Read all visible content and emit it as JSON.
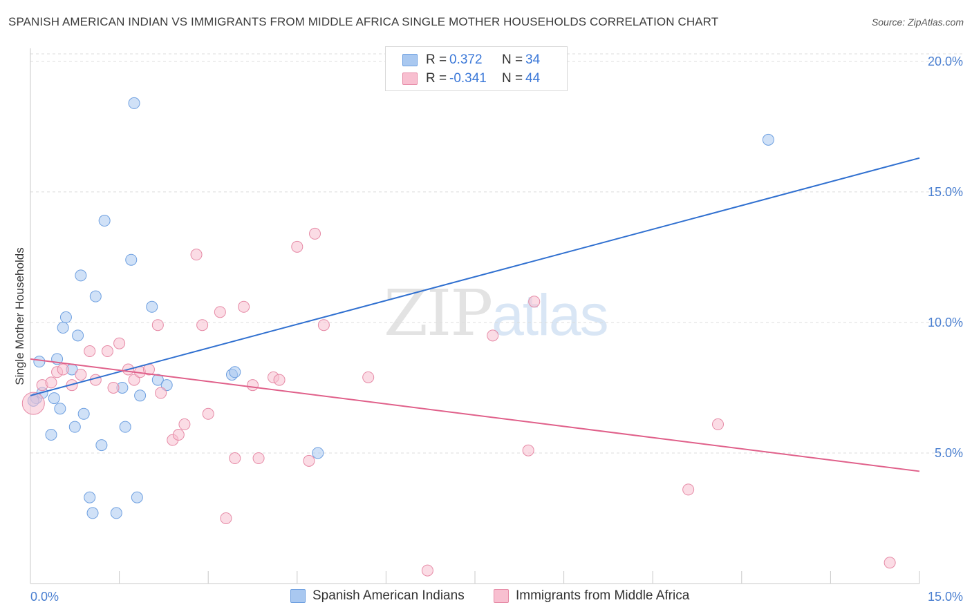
{
  "header": {
    "title": "SPANISH AMERICAN INDIAN VS IMMIGRANTS FROM MIDDLE AFRICA SINGLE MOTHER HOUSEHOLDS CORRELATION CHART",
    "source": "Source: ZipAtlas.com"
  },
  "watermark": {
    "zip": "ZIP",
    "atlas": "atlas"
  },
  "legend": {
    "rows": [
      {
        "r_label": "R =",
        "r_value": "0.372",
        "n_label": "N =",
        "n_value": "34",
        "color": "#a9c8f0",
        "border": "#6d9fe0"
      },
      {
        "r_label": "R =",
        "r_value": "-0.341",
        "n_label": "N =",
        "n_value": "44",
        "color": "#f8bfd0",
        "border": "#e68aa6"
      }
    ]
  },
  "bottom_legend": {
    "items": [
      {
        "label": "Spanish American Indians",
        "color": "#a9c8f0",
        "border": "#6d9fe0"
      },
      {
        "label": "Immigrants from Middle Africa",
        "color": "#f8bfd0",
        "border": "#e68aa6"
      }
    ]
  },
  "chart_data": {
    "type": "scatter",
    "title": "SPANISH AMERICAN INDIAN VS IMMIGRANTS FROM MIDDLE AFRICA SINGLE MOTHER HOUSEHOLDS CORRELATION CHART",
    "xlabel": "",
    "ylabel": "Single Mother Households",
    "xlim": [
      0,
      15
    ],
    "ylim": [
      0,
      20.5
    ],
    "x_tick_labels": [
      "0.0%",
      "15.0%"
    ],
    "y_ticks": [
      5,
      10,
      15,
      20
    ],
    "y_tick_labels": [
      "5.0%",
      "10.0%",
      "15.0%",
      "20.0%"
    ],
    "grid": true,
    "series": [
      {
        "name": "Spanish American Indians",
        "color": "#6d9fe0",
        "fill": "#a9c8f0",
        "trend": {
          "x": [
            0,
            15
          ],
          "y": [
            7.2,
            16.3
          ],
          "color": "#3070d0"
        },
        "points": [
          [
            0.1,
            7.1
          ],
          [
            0.15,
            8.5
          ],
          [
            0.2,
            7.3
          ],
          [
            0.35,
            5.7
          ],
          [
            0.4,
            7.1
          ],
          [
            0.45,
            8.6
          ],
          [
            0.5,
            6.7
          ],
          [
            0.55,
            9.8
          ],
          [
            0.6,
            10.2
          ],
          [
            0.7,
            8.2
          ],
          [
            0.75,
            6.0
          ],
          [
            0.8,
            9.5
          ],
          [
            0.85,
            11.8
          ],
          [
            0.9,
            6.5
          ],
          [
            1.0,
            3.3
          ],
          [
            1.05,
            2.7
          ],
          [
            1.1,
            11.0
          ],
          [
            1.2,
            5.3
          ],
          [
            1.25,
            13.9
          ],
          [
            1.45,
            2.7
          ],
          [
            1.55,
            7.5
          ],
          [
            1.6,
            6.0
          ],
          [
            1.7,
            12.4
          ],
          [
            1.75,
            18.4
          ],
          [
            1.8,
            3.3
          ],
          [
            1.85,
            7.2
          ],
          [
            2.05,
            10.6
          ],
          [
            2.15,
            7.8
          ],
          [
            2.3,
            7.6
          ],
          [
            3.4,
            8.0
          ],
          [
            3.45,
            8.1
          ],
          [
            4.85,
            5.0
          ],
          [
            12.45,
            17.0
          ],
          [
            0.05,
            7.0
          ]
        ]
      },
      {
        "name": "Immigrants from Middle Africa",
        "color": "#e68aa6",
        "fill": "#f8bfd0",
        "trend": {
          "x": [
            0,
            15
          ],
          "y": [
            8.6,
            4.3
          ],
          "color": "#e0608a"
        },
        "points": [
          [
            0.05,
            6.9
          ],
          [
            0.2,
            7.6
          ],
          [
            0.35,
            7.7
          ],
          [
            0.45,
            8.1
          ],
          [
            0.55,
            8.2
          ],
          [
            0.7,
            7.6
          ],
          [
            0.85,
            8.0
          ],
          [
            1.0,
            8.9
          ],
          [
            1.1,
            7.8
          ],
          [
            1.3,
            8.9
          ],
          [
            1.4,
            7.5
          ],
          [
            1.5,
            9.2
          ],
          [
            1.65,
            8.2
          ],
          [
            1.75,
            7.8
          ],
          [
            1.85,
            8.1
          ],
          [
            2.0,
            8.2
          ],
          [
            2.15,
            9.9
          ],
          [
            2.2,
            7.3
          ],
          [
            2.4,
            5.5
          ],
          [
            2.5,
            5.7
          ],
          [
            2.6,
            6.1
          ],
          [
            2.8,
            12.6
          ],
          [
            2.9,
            9.9
          ],
          [
            3.0,
            6.5
          ],
          [
            3.2,
            10.4
          ],
          [
            3.3,
            2.5
          ],
          [
            3.45,
            4.8
          ],
          [
            3.6,
            10.6
          ],
          [
            3.75,
            7.6
          ],
          [
            3.85,
            4.8
          ],
          [
            4.1,
            7.9
          ],
          [
            4.2,
            7.8
          ],
          [
            4.5,
            12.9
          ],
          [
            4.7,
            4.7
          ],
          [
            4.8,
            13.4
          ],
          [
            4.95,
            9.9
          ],
          [
            5.7,
            7.9
          ],
          [
            6.7,
            0.5
          ],
          [
            7.8,
            9.5
          ],
          [
            8.4,
            5.1
          ],
          [
            8.5,
            10.8
          ],
          [
            11.1,
            3.6
          ],
          [
            11.6,
            6.1
          ],
          [
            14.5,
            0.8
          ]
        ]
      }
    ]
  }
}
